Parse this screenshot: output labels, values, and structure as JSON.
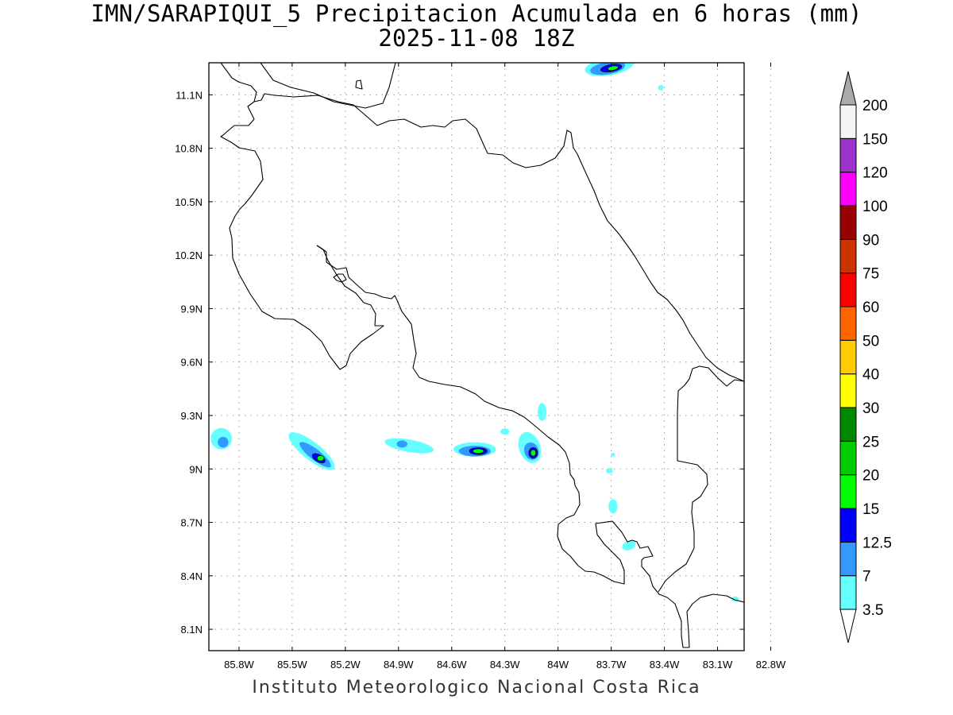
{
  "title": {
    "line1": "IMN/SARAPIQUI_5 Precipitacion Acumulada en 6 horas (mm)",
    "line2": "2025-11-08 18Z"
  },
  "footer": "Instituto Meteorologico Nacional Costa Rica",
  "map": {
    "lon_range": [
      -85.97,
      -82.95
    ],
    "lat_range": [
      7.98,
      11.28
    ],
    "lat_ticks": [
      {
        "value": 8.1,
        "label": "8.1N"
      },
      {
        "value": 8.4,
        "label": "8.4N"
      },
      {
        "value": 8.7,
        "label": "8.7N"
      },
      {
        "value": 9.0,
        "label": "9N"
      },
      {
        "value": 9.3,
        "label": "9.3N"
      },
      {
        "value": 9.6,
        "label": "9.6N"
      },
      {
        "value": 9.9,
        "label": "9.9N"
      },
      {
        "value": 10.2,
        "label": "10.2N"
      },
      {
        "value": 10.5,
        "label": "10.5N"
      },
      {
        "value": 10.8,
        "label": "10.8N"
      },
      {
        "value": 11.1,
        "label": "11.1N"
      }
    ],
    "lon_ticks": [
      {
        "value": -85.8,
        "label": "85.8W"
      },
      {
        "value": -85.5,
        "label": "85.5W"
      },
      {
        "value": -85.2,
        "label": "85.2W"
      },
      {
        "value": -84.9,
        "label": "84.9W"
      },
      {
        "value": -84.6,
        "label": "84.6W"
      },
      {
        "value": -84.3,
        "label": "84.3W"
      },
      {
        "value": -84.0,
        "label": "84W"
      },
      {
        "value": -83.7,
        "label": "83.7W"
      },
      {
        "value": -83.4,
        "label": "83.4W"
      },
      {
        "value": -83.1,
        "label": "83.1W"
      },
      {
        "value": -82.8,
        "label": "82.8W"
      }
    ],
    "grid": true,
    "precip_cells": [
      {
        "lon": -85.9,
        "lat": 9.17,
        "level": 1,
        "rx": 0.06,
        "ry": 0.06,
        "rot": 0
      },
      {
        "lon": -85.89,
        "lat": 9.15,
        "level": 2,
        "rx": 0.03,
        "ry": 0.03,
        "rot": 0
      },
      {
        "lon": -85.39,
        "lat": 9.1,
        "level": 1,
        "rx": 0.16,
        "ry": 0.05,
        "rot": 38
      },
      {
        "lon": -85.37,
        "lat": 9.08,
        "level": 2,
        "rx": 0.11,
        "ry": 0.03,
        "rot": 38
      },
      {
        "lon": -85.35,
        "lat": 9.06,
        "level": 3,
        "rx": 0.04,
        "ry": 0.02,
        "rot": 30
      },
      {
        "lon": -85.34,
        "lat": 9.06,
        "level": 4,
        "rx": 0.02,
        "ry": 0.015,
        "rot": 0
      },
      {
        "lon": -84.84,
        "lat": 9.13,
        "level": 1,
        "rx": 0.14,
        "ry": 0.035,
        "rot": 10
      },
      {
        "lon": -84.88,
        "lat": 9.14,
        "level": 2,
        "rx": 0.03,
        "ry": 0.02,
        "rot": 0
      },
      {
        "lon": -84.47,
        "lat": 9.11,
        "level": 1,
        "rx": 0.12,
        "ry": 0.04,
        "rot": 0
      },
      {
        "lon": -84.47,
        "lat": 9.1,
        "level": 2,
        "rx": 0.09,
        "ry": 0.03,
        "rot": 0
      },
      {
        "lon": -84.45,
        "lat": 9.1,
        "level": 3,
        "rx": 0.05,
        "ry": 0.02,
        "rot": 0
      },
      {
        "lon": -84.45,
        "lat": 9.1,
        "level": 4,
        "rx": 0.03,
        "ry": 0.013,
        "rot": 0
      },
      {
        "lon": -84.16,
        "lat": 9.12,
        "level": 1,
        "rx": 0.06,
        "ry": 0.09,
        "rot": -20
      },
      {
        "lon": -84.15,
        "lat": 9.1,
        "level": 2,
        "rx": 0.04,
        "ry": 0.05,
        "rot": -20
      },
      {
        "lon": -84.14,
        "lat": 9.09,
        "level": 3,
        "rx": 0.025,
        "ry": 0.03,
        "rot": 0
      },
      {
        "lon": -84.14,
        "lat": 9.09,
        "level": 4,
        "rx": 0.015,
        "ry": 0.018,
        "rot": 0
      },
      {
        "lon": -84.3,
        "lat": 9.21,
        "level": 1,
        "rx": 0.025,
        "ry": 0.018,
        "rot": 0
      },
      {
        "lon": -84.09,
        "lat": 9.32,
        "level": 1,
        "rx": 0.025,
        "ry": 0.05,
        "rot": 0
      },
      {
        "lon": -83.71,
        "lat": 8.99,
        "level": 1,
        "rx": 0.02,
        "ry": 0.015,
        "rot": 0
      },
      {
        "lon": -83.69,
        "lat": 9.08,
        "level": 1,
        "rx": 0.012,
        "ry": 0.01,
        "rot": 0
      },
      {
        "lon": -83.69,
        "lat": 8.79,
        "level": 1,
        "rx": 0.025,
        "ry": 0.04,
        "rot": 0
      },
      {
        "lon": -83.6,
        "lat": 8.57,
        "level": 1,
        "rx": 0.04,
        "ry": 0.025,
        "rot": -20
      },
      {
        "lon": -83.71,
        "lat": 11.26,
        "level": 1,
        "rx": 0.14,
        "ry": 0.05,
        "rot": -10
      },
      {
        "lon": -83.72,
        "lat": 11.25,
        "level": 2,
        "rx": 0.1,
        "ry": 0.035,
        "rot": -10
      },
      {
        "lon": -83.7,
        "lat": 11.25,
        "level": 3,
        "rx": 0.06,
        "ry": 0.02,
        "rot": -10
      },
      {
        "lon": -83.69,
        "lat": 11.25,
        "level": 4,
        "rx": 0.03,
        "ry": 0.012,
        "rot": -10
      },
      {
        "lon": -83.42,
        "lat": 11.14,
        "level": 1,
        "rx": 0.015,
        "ry": 0.015,
        "rot": 0
      },
      {
        "lon": -83.0,
        "lat": 8.27,
        "level": 1,
        "rx": 0.02,
        "ry": 0.015,
        "rot": 0
      }
    ]
  },
  "colorbar": {
    "levels": [
      {
        "label": "3.5",
        "color": "#66ffff"
      },
      {
        "label": "7",
        "color": "#3399ff"
      },
      {
        "label": "12.5",
        "color": "#0000ff"
      },
      {
        "label": "15",
        "color": "#00ff00"
      },
      {
        "label": "20",
        "color": "#00cc00"
      },
      {
        "label": "25",
        "color": "#008800"
      },
      {
        "label": "30",
        "color": "#ffff00"
      },
      {
        "label": "40",
        "color": "#ffcc00"
      },
      {
        "label": "50",
        "color": "#ff6600"
      },
      {
        "label": "60",
        "color": "#ff0000"
      },
      {
        "label": "75",
        "color": "#cc3300"
      },
      {
        "label": "90",
        "color": "#990000"
      },
      {
        "label": "100",
        "color": "#ff00ff"
      },
      {
        "label": "120",
        "color": "#9933cc"
      },
      {
        "label": "150",
        "color": "#f5f5f5"
      },
      {
        "label": "200",
        "color": "#aaaaaa"
      }
    ],
    "below_color": "#ffffff",
    "above_color": "#aaaaaa"
  }
}
